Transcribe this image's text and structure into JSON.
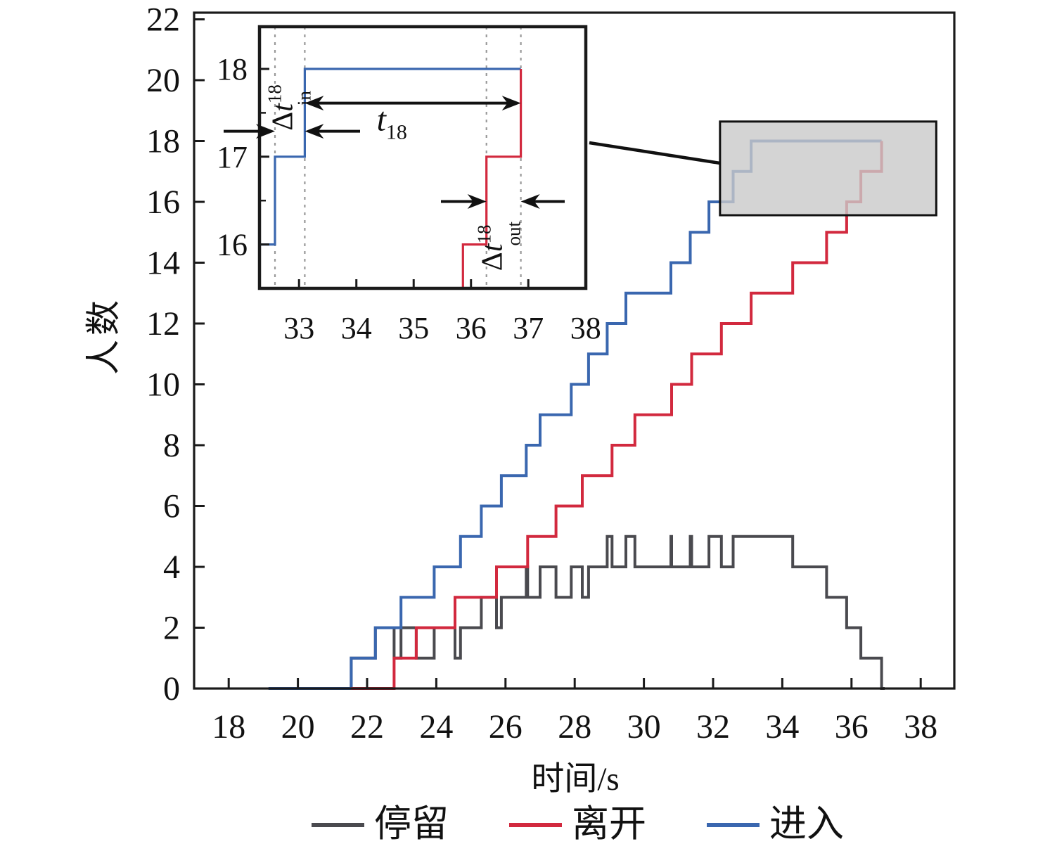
{
  "chart_data": {
    "type": "line",
    "subtype": "step-cumulative",
    "title": "",
    "xlabel": "时间/s",
    "ylabel": "人数",
    "xlim": [
      17,
      39
    ],
    "ylim": [
      0,
      22.2
    ],
    "grid": false,
    "xticks": [
      18,
      20,
      22,
      24,
      26,
      28,
      30,
      32,
      34,
      36,
      38
    ],
    "yticks": [
      0,
      2,
      4,
      6,
      8,
      10,
      12,
      14,
      16,
      18,
      20,
      22
    ],
    "axis_color": "#1a1a1a",
    "series": [
      {
        "name": "停留",
        "role": "stay",
        "color": "#4A4A4F",
        "derived": "enter_minus_leave",
        "max_value": 5
      },
      {
        "name": "离开",
        "role": "leave",
        "color": "#D2293E",
        "start_x": 21.54,
        "step_x": [
          22.78,
          23.42,
          24.54,
          25.74,
          26.64,
          27.46,
          28.22,
          29.08,
          29.74,
          30.8,
          31.38,
          32.24,
          33.1,
          34.3,
          35.28,
          35.86,
          36.27,
          36.87
        ],
        "end_x": 36.87,
        "final_value": 18
      },
      {
        "name": "进入",
        "role": "enter",
        "color": "#3A67AF",
        "start_x": 19.15,
        "step_x": [
          21.54,
          22.24,
          22.98,
          23.94,
          24.7,
          25.3,
          25.88,
          26.6,
          27.0,
          27.9,
          28.4,
          28.94,
          29.48,
          30.78,
          31.34,
          31.88,
          32.58,
          33.1
        ],
        "end_x": 36.87,
        "final_value": 18
      }
    ],
    "legend": [
      {
        "label": "停留",
        "color": "#4A4A4F"
      },
      {
        "label": "离开",
        "color": "#D2293E"
      },
      {
        "label": "进入",
        "color": "#3A67AF"
      }
    ],
    "highlight_rect": {
      "x1": 32.2,
      "x2": 38.45,
      "y1": 15.56,
      "y2": 18.64,
      "fill": "#C9C9C9",
      "border": "#111111"
    },
    "inset": {
      "xlim": [
        32.31,
        38.0
      ],
      "ylim": [
        15.5,
        18.48
      ],
      "xticks": [
        33,
        34,
        35,
        36,
        37,
        38
      ],
      "yticks": [
        16,
        17,
        18
      ],
      "yticks_minor": [
        16.5,
        17.5
      ],
      "dashed_x": [
        32.58,
        33.1,
        36.27,
        36.87
      ],
      "dashed_color": "#999999",
      "annotations": {
        "dt_in": {
          "base": "Δ",
          "italic": "t",
          "sup": "18",
          "sub": "in",
          "arrow_y": 17.29,
          "label_x": 32.88,
          "label_y": 17.56
        },
        "t_18": {
          "italic": "t",
          "sub": "18",
          "arrow_y": 17.61,
          "arrow_x1": 33.1,
          "arrow_x2": 36.87,
          "label_x": 34.62,
          "label_y": 17.3
        },
        "dt_out": {
          "base": "Δ",
          "italic": "t",
          "sup": "18",
          "sub": "out",
          "arrow_y": 16.49,
          "label_x": 36.54,
          "label_y": 15.98
        }
      }
    }
  }
}
